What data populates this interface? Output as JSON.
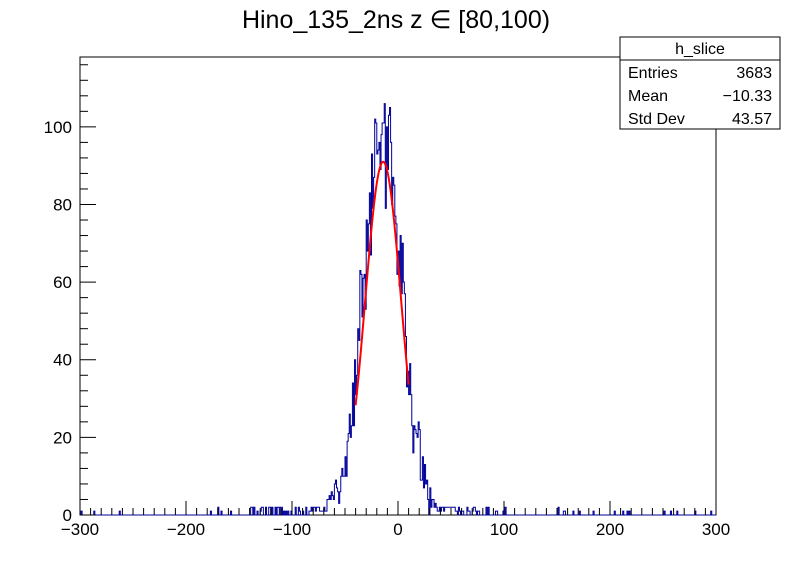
{
  "chart_data": {
    "type": "histogram",
    "title": "Hino_135_2ns z  ∈ [80,100)",
    "xlabel": "",
    "ylabel": "",
    "xlim": [
      -300,
      300
    ],
    "ylim": [
      0,
      118
    ],
    "x_ticks": [
      -300,
      -200,
      -100,
      0,
      100,
      200,
      300
    ],
    "x_tick_labels": [
      "−300",
      "−200",
      "−100",
      "0",
      "100",
      "200",
      "300"
    ],
    "y_ticks": [
      0,
      20,
      40,
      60,
      80,
      100
    ],
    "y_tick_labels": [
      "0",
      "20",
      "40",
      "60",
      "80",
      "100"
    ],
    "grid": false,
    "histogram": {
      "name": "h_slice",
      "color": "#000099",
      "bin_width": 1,
      "mean": -10.33,
      "std_dev": 43.57,
      "entries": 3683
    },
    "fit": {
      "type": "gaussian",
      "color": "#ff0000",
      "x_range": [
        -40,
        10
      ],
      "peak": 91,
      "mean": -14,
      "sigma": 17
    },
    "stats_box": {
      "title": "h_slice",
      "placement": "top-right",
      "rows": [
        {
          "label": "Entries",
          "value": "3683"
        },
        {
          "label": "Mean",
          "value": "−10.33"
        },
        {
          "label": "Std Dev",
          "value": "43.57"
        }
      ]
    }
  }
}
